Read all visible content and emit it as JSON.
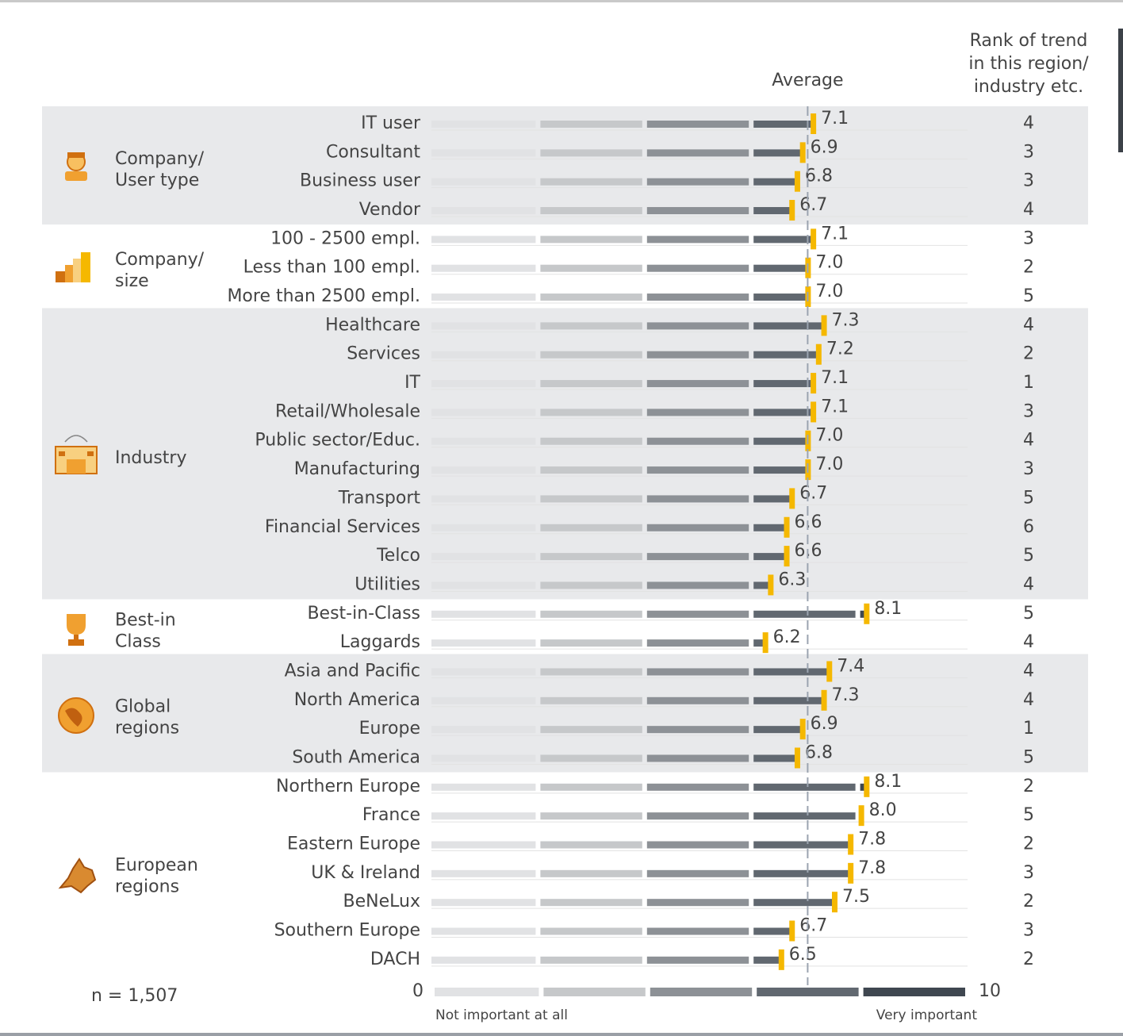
{
  "chart_data": {
    "type": "bar",
    "orientation": "horizontal",
    "average_label": "Average",
    "average": 7.0,
    "rank_header_lines": [
      "Rank of trend",
      "in this region/",
      "industry etc."
    ],
    "n_label": "n = 1,507",
    "xlim": [
      0,
      10
    ],
    "xticks": [
      0,
      10
    ],
    "x_low_label": "Not important at all",
    "x_high_label": "Very important",
    "marker_color": "#f5b800",
    "segment_colors": [
      "#e1e2e4",
      "#c6c8ca",
      "#8d9196",
      "#616870",
      "#3f4750"
    ],
    "groups": [
      {
        "name_lines": [
          "Company/",
          "User type"
        ],
        "shaded": true,
        "categories": [
          "IT user",
          "Consultant",
          "Business user",
          "Vendor"
        ],
        "values": [
          7.1,
          6.9,
          6.8,
          6.7
        ],
        "value_labels": [
          "7.1",
          "6.9",
          "6.8",
          "6.7"
        ],
        "ranks": [
          4,
          3,
          3,
          4
        ]
      },
      {
        "name_lines": [
          "Company/",
          "size"
        ],
        "shaded": false,
        "categories": [
          "100 - 2500 empl.",
          "Less than 100 empl.",
          "More than 2500 empl."
        ],
        "values": [
          7.1,
          7.0,
          7.0
        ],
        "value_labels": [
          "7.1",
          "7.0",
          "7.0"
        ],
        "ranks": [
          3,
          2,
          5
        ]
      },
      {
        "name_lines": [
          "Industry"
        ],
        "shaded": true,
        "categories": [
          "Healthcare",
          "Services",
          "IT",
          "Retail/Wholesale",
          "Public sector/Educ.",
          "Manufacturing",
          "Transport",
          "Financial Services",
          "Telco",
          "Utilities"
        ],
        "values": [
          7.3,
          7.2,
          7.1,
          7.1,
          7.0,
          7.0,
          6.7,
          6.6,
          6.6,
          6.3
        ],
        "value_labels": [
          "7.3",
          "7.2",
          "7.1",
          "7.1",
          "7.0",
          "7.0",
          "6.7",
          "6.6",
          "6.6",
          "6.3"
        ],
        "ranks": [
          4,
          2,
          1,
          3,
          4,
          3,
          5,
          6,
          5,
          4
        ]
      },
      {
        "name_lines": [
          "Best-in",
          "Class"
        ],
        "shaded": false,
        "categories": [
          "Best-in-Class",
          "Laggards"
        ],
        "values": [
          8.1,
          6.2
        ],
        "value_labels": [
          "8.1",
          "6.2"
        ],
        "ranks": [
          5,
          4
        ]
      },
      {
        "name_lines": [
          "Global",
          "regions"
        ],
        "shaded": true,
        "categories": [
          "Asia and Pacific",
          "North America",
          "Europe",
          "South America"
        ],
        "values": [
          7.4,
          7.3,
          6.9,
          6.8
        ],
        "value_labels": [
          "7.4",
          "7.3",
          "6.9",
          "6.8"
        ],
        "ranks": [
          4,
          4,
          1,
          5
        ]
      },
      {
        "name_lines": [
          "European",
          "regions"
        ],
        "shaded": false,
        "categories": [
          "Northern Europe",
          "France",
          "Eastern Europe",
          "UK & Ireland",
          "BeNeLux",
          "Southern Europe",
          "DACH"
        ],
        "values": [
          8.1,
          8.0,
          7.8,
          7.8,
          7.5,
          6.7,
          6.5
        ],
        "value_labels": [
          "8.1",
          "8.0",
          "7.8",
          "7.8",
          "7.5",
          "6.7",
          "6.5"
        ],
        "ranks": [
          2,
          5,
          2,
          3,
          2,
          3,
          2
        ]
      }
    ]
  }
}
